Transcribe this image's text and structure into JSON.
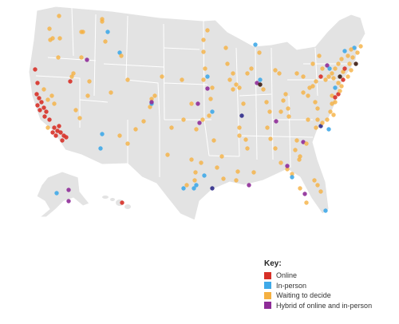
{
  "legend": {
    "title": "Key:",
    "items": [
      {
        "key": "online",
        "label": "Online",
        "color": "#d73027"
      },
      {
        "key": "inperson",
        "label": "In-person",
        "color": "#3fa9e8"
      },
      {
        "key": "waiting",
        "label": "Waiting to decide",
        "color": "#f5b041"
      },
      {
        "key": "hybrid",
        "label": "Hybrid of online and in-person",
        "color": "#8e2c98"
      }
    ]
  },
  "colors": {
    "land": "#e3e3e3",
    "borders": "#ffffff",
    "overlap_online_hybrid": "#2e2a8a",
    "overlap_dense": "#3b1a10"
  }
}
